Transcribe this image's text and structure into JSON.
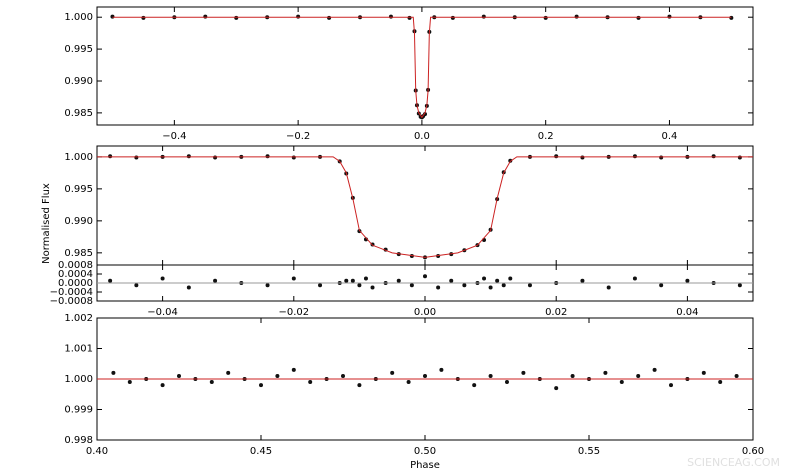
{
  "chart_data": [
    {
      "type": "scatter",
      "xlim": [
        -0.525,
        0.535
      ],
      "ylim": [
        0.9831,
        1.0016
      ],
      "xticks": [
        {
          "value": -0.4,
          "label": "−0.4"
        },
        {
          "value": -0.2,
          "label": "−0.2"
        },
        {
          "value": 0,
          "label": "0.0"
        },
        0.2,
        0.4
      ],
      "yticks": [
        0.985,
        {
          "value": 0.99,
          "label": "0.990"
        },
        0.995,
        {
          "value": 1,
          "label": "1.000"
        }
      ],
      "series": [
        {
          "style": "points",
          "color": "#111111",
          "x": [
            -0.5,
            -0.45,
            -0.4,
            -0.35,
            -0.3,
            -0.25,
            -0.2,
            -0.15,
            -0.1,
            -0.05,
            -0.02,
            -0.012,
            -0.01,
            -0.008,
            -0.005,
            -0.002,
            0,
            0.002,
            0.005,
            0.008,
            0.01,
            0.012,
            0.02,
            0.05,
            0.1,
            0.15,
            0.2,
            0.25,
            0.3,
            0.35,
            0.4,
            0.45,
            0.5
          ],
          "values": [
            1.0001,
            0.9999,
            1.0,
            1.0001,
            0.9999,
            1.0,
            1.0001,
            0.9999,
            1.0,
            1.0001,
            0.9999,
            0.9978,
            0.9885,
            0.9862,
            0.9849,
            0.9844,
            0.9843,
            0.9845,
            0.9848,
            0.9861,
            0.9886,
            0.9977,
            1.0,
            0.9999,
            1.0001,
            1.0,
            0.9999,
            1.0001,
            1.0,
            0.9999,
            1.0001,
            1.0,
            0.9999
          ]
        },
        {
          "style": "line",
          "color": "#cc2222",
          "x": [
            -0.5,
            -0.014,
            -0.012,
            -0.01,
            -0.008,
            -0.005,
            0,
            0.005,
            0.008,
            0.01,
            0.012,
            0.014,
            0.5
          ],
          "values": [
            1.0,
            1.0,
            0.9975,
            0.9885,
            0.9862,
            0.985,
            0.9843,
            0.985,
            0.9862,
            0.9885,
            0.9975,
            1.0,
            1.0
          ]
        }
      ]
    },
    {
      "type": "scatter",
      "ylabel": "Normalised Flux",
      "xlim": [
        -0.05,
        0.05
      ],
      "ylim": [
        0.9831,
        1.0017
      ],
      "xticks": [
        -0.04,
        -0.02,
        0,
        0.02,
        0.04
      ],
      "xtick_labels": false,
      "yticks": [
        0.985,
        {
          "value": 0.99,
          "label": "0.990"
        },
        0.995,
        {
          "value": 1,
          "label": "1.000"
        }
      ],
      "series": [
        {
          "style": "points",
          "color": "#111111",
          "x": [
            -0.048,
            -0.044,
            -0.04,
            -0.036,
            -0.032,
            -0.028,
            -0.024,
            -0.02,
            -0.016,
            -0.013,
            -0.012,
            -0.011,
            -0.01,
            -0.009,
            -0.008,
            -0.006,
            -0.004,
            -0.002,
            0,
            0.002,
            0.004,
            0.006,
            0.008,
            0.009,
            0.01,
            0.011,
            0.012,
            0.013,
            0.016,
            0.02,
            0.024,
            0.028,
            0.032,
            0.036,
            0.04,
            0.044,
            0.048
          ],
          "values": [
            1.0001,
            0.9999,
            1.0,
            1.0001,
            0.9999,
            1.0,
            1.0001,
            0.9999,
            1.0,
            0.9993,
            0.9974,
            0.9936,
            0.9884,
            0.9871,
            0.9863,
            0.9855,
            0.9848,
            0.9845,
            0.9843,
            0.9845,
            0.9848,
            0.9854,
            0.9862,
            0.987,
            0.9886,
            0.9934,
            0.9976,
            0.9994,
            1.0,
            1.0001,
            0.9999,
            1.0,
            1.0001,
            0.9999,
            1.0,
            1.0001,
            0.9999
          ]
        },
        {
          "style": "line",
          "color": "#cc2222",
          "x": [
            -0.05,
            -0.014,
            -0.013,
            -0.012,
            -0.011,
            -0.01,
            -0.008,
            -0.005,
            0,
            0.005,
            0.008,
            0.01,
            0.011,
            0.012,
            0.013,
            0.014,
            0.05
          ],
          "values": [
            1.0,
            1.0,
            0.9993,
            0.9975,
            0.9935,
            0.9885,
            0.9862,
            0.985,
            0.9843,
            0.985,
            0.9862,
            0.9885,
            0.9935,
            0.9975,
            0.9993,
            1.0,
            1.0
          ]
        }
      ]
    },
    {
      "type": "scatter",
      "xlim": [
        -0.05,
        0.05
      ],
      "ylim": [
        -0.0008,
        0.0008
      ],
      "xticks": [
        {
          "value": -0.04,
          "label": "−0.04"
        },
        {
          "value": -0.02,
          "label": "−0.02"
        },
        {
          "value": 0,
          "label": "0.00"
        },
        0.02,
        0.04
      ],
      "yticks": [
        {
          "value": -0.0008,
          "label": "−0.0008"
        },
        {
          "value": -0.0004,
          "label": "−0.0004"
        },
        {
          "value": 0,
          "label": "0.0000"
        },
        0.0004,
        0.0008
      ],
      "series": [
        {
          "style": "points",
          "color": "#111111",
          "x": [
            -0.048,
            -0.044,
            -0.04,
            -0.036,
            -0.032,
            -0.028,
            -0.024,
            -0.02,
            -0.016,
            -0.013,
            -0.012,
            -0.011,
            -0.01,
            -0.009,
            -0.008,
            -0.006,
            -0.004,
            -0.002,
            0,
            0.002,
            0.004,
            0.006,
            0.008,
            0.009,
            0.01,
            0.011,
            0.012,
            0.013,
            0.016,
            0.02,
            0.024,
            0.028,
            0.032,
            0.036,
            0.04,
            0.044,
            0.048
          ],
          "values": [
            0.0001,
            -0.0001,
            0.0002,
            -0.0002,
            0.0001,
            0,
            -0.0001,
            0.0002,
            -0.0001,
            0,
            0.0001,
            0.0001,
            -0.0001,
            0.0002,
            -0.0002,
            0,
            0.0001,
            -0.0001,
            0.0003,
            -0.0002,
            0.0001,
            -0.0001,
            0,
            0.0002,
            -0.0002,
            0.0001,
            -0.0001,
            0.0002,
            -0.0001,
            0,
            0.0001,
            -0.0002,
            0.0002,
            -0.0001,
            0.0001,
            0,
            -0.0001
          ]
        },
        {
          "style": "line",
          "color": "#999999",
          "x": [
            -0.05,
            0.05
          ],
          "values": [
            0,
            0
          ]
        }
      ]
    },
    {
      "type": "scatter",
      "xlabel": "Phase",
      "xlim": [
        0.4,
        0.6
      ],
      "ylim": [
        0.998,
        1.002
      ],
      "xticks": [
        {
          "value": 0.4,
          "label": "0.40"
        },
        0.45,
        {
          "value": 0.5,
          "label": "0.50"
        },
        0.55,
        {
          "value": 0.6,
          "label": "0.60"
        }
      ],
      "yticks": [
        0.998,
        0.999,
        {
          "value": 1,
          "label": "1.000"
        },
        1.001,
        1.002
      ],
      "series": [
        {
          "style": "points",
          "color": "#111111",
          "x": [
            0.405,
            0.41,
            0.415,
            0.42,
            0.425,
            0.43,
            0.435,
            0.44,
            0.445,
            0.45,
            0.455,
            0.46,
            0.465,
            0.47,
            0.475,
            0.48,
            0.485,
            0.49,
            0.495,
            0.5,
            0.505,
            0.51,
            0.515,
            0.52,
            0.525,
            0.53,
            0.535,
            0.54,
            0.545,
            0.55,
            0.555,
            0.56,
            0.565,
            0.57,
            0.575,
            0.58,
            0.585,
            0.59,
            0.595
          ],
          "values": [
            1.0002,
            0.9999,
            1.0,
            0.9998,
            1.0001,
            1.0,
            0.9999,
            1.0002,
            1.0,
            0.9998,
            1.0001,
            1.0003,
            0.9999,
            1.0,
            1.0001,
            0.9998,
            1.0,
            1.0002,
            0.9999,
            1.0001,
            1.0003,
            1.0,
            0.9998,
            1.0001,
            0.9999,
            1.0002,
            1.0,
            0.9997,
            1.0001,
            1.0,
            1.0002,
            0.9999,
            1.0001,
            1.0003,
            0.9998,
            1.0,
            1.0002,
            0.9999,
            1.0001
          ]
        },
        {
          "style": "line",
          "color": "#cc2222",
          "x": [
            0.4,
            0.6
          ],
          "values": [
            1.0,
            1.0
          ]
        }
      ]
    }
  ],
  "watermark": "SCIENCEAG.COM"
}
